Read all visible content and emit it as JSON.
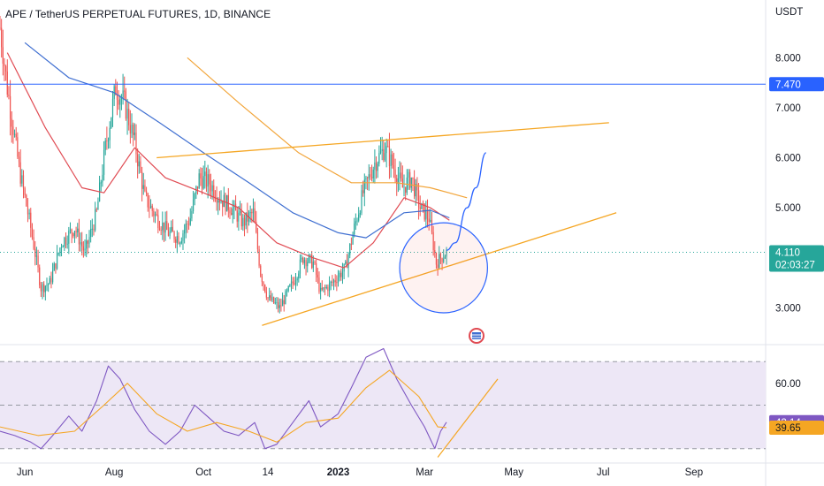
{
  "header": {
    "title": "APE / TetherUS PERPETUAL FUTURES, 1D, BINANCE",
    "currency": "USDT"
  },
  "colors": {
    "up": "#26a69a",
    "down": "#ef5350",
    "ma_red": "#e04a52",
    "ma_blue": "#3f6fd1",
    "ma_orange": "#f2a53a",
    "trend": "#f5a623",
    "hline": "#2962ff",
    "rsi": "#7e57c2",
    "rsi_ma": "#f5a623",
    "rsi_band": "#ede7f6",
    "price_badge": "#26a69a",
    "hline_badge": "#2962ff",
    "rsi_badge": "#7e57c2",
    "rsi_ma_badge": "#f5a623"
  },
  "chart_data": {
    "type": "candlestick",
    "price_axis": {
      "ticks": [
        "8.000",
        "7.000",
        "6.000",
        "5.000",
        "3.000"
      ],
      "tick_values": [
        8,
        7,
        6,
        5,
        3
      ],
      "range": [
        2.3,
        8.8
      ]
    },
    "x_axis": {
      "labels": [
        "Jun",
        "Aug",
        "Oct",
        "14",
        "2023",
        "Mar",
        "May",
        "Jul",
        "Sep"
      ],
      "bold": [
        "2023"
      ],
      "dates": [
        "2022-06-01",
        "2022-08-01",
        "2022-10-01",
        "2022-11-14",
        "2023-01-01",
        "2023-03-01",
        "2023-05-01",
        "2023-07-01",
        "2023-09-01"
      ]
    },
    "date_range": [
      "2022-05-15",
      "2023-10-20"
    ],
    "candles_range": [
      "2022-05-15",
      "2023-03-16"
    ],
    "price_path": [
      [
        "2022-05-15",
        8.6
      ],
      [
        "2022-05-20",
        7.4
      ],
      [
        "2022-05-28",
        5.8
      ],
      [
        "2022-06-05",
        4.6
      ],
      [
        "2022-06-12",
        3.4
      ],
      [
        "2022-06-18",
        3.5
      ],
      [
        "2022-06-26",
        4.3
      ],
      [
        "2022-07-05",
        4.6
      ],
      [
        "2022-07-12",
        4.1
      ],
      [
        "2022-07-20",
        4.9
      ],
      [
        "2022-07-26",
        6.2
      ],
      [
        "2022-08-02",
        7.4
      ],
      [
        "2022-08-08",
        7.1
      ],
      [
        "2022-08-15",
        6.3
      ],
      [
        "2022-08-22",
        5.2
      ],
      [
        "2022-08-30",
        4.8
      ],
      [
        "2022-09-07",
        4.5
      ],
      [
        "2022-09-15",
        4.4
      ],
      [
        "2022-09-22",
        4.8
      ],
      [
        "2022-09-28",
        5.6
      ],
      [
        "2022-10-05",
        5.5
      ],
      [
        "2022-10-12",
        5.2
      ],
      [
        "2022-10-20",
        5.0
      ],
      [
        "2022-10-28",
        4.7
      ],
      [
        "2022-11-04",
        4.9
      ],
      [
        "2022-11-09",
        3.7
      ],
      [
        "2022-11-14",
        3.2
      ],
      [
        "2022-11-22",
        3.0
      ],
      [
        "2022-12-01",
        3.5
      ],
      [
        "2022-12-08",
        4.0
      ],
      [
        "2022-12-15",
        3.9
      ],
      [
        "2022-12-20",
        3.3
      ],
      [
        "2022-12-28",
        3.5
      ],
      [
        "2023-01-06",
        3.8
      ],
      [
        "2023-01-12",
        4.6
      ],
      [
        "2023-01-18",
        5.3
      ],
      [
        "2023-01-26",
        5.9
      ],
      [
        "2023-02-02",
        6.2
      ],
      [
        "2023-02-08",
        5.8
      ],
      [
        "2023-02-14",
        5.4
      ],
      [
        "2023-02-20",
        5.6
      ],
      [
        "2023-02-26",
        5.0
      ],
      [
        "2023-03-04",
        4.8
      ],
      [
        "2023-03-09",
        3.9
      ],
      [
        "2023-03-12",
        4.0
      ],
      [
        "2023-03-16",
        4.11
      ]
    ],
    "moving_averages": [
      {
        "color": "#e04a52",
        "points": [
          [
            "2022-05-20",
            8.1
          ],
          [
            "2022-06-15",
            6.6
          ],
          [
            "2022-07-10",
            5.4
          ],
          [
            "2022-07-25",
            5.3
          ],
          [
            "2022-08-15",
            6.2
          ],
          [
            "2022-09-05",
            5.6
          ],
          [
            "2022-10-01",
            5.3
          ],
          [
            "2022-10-25",
            5.0
          ],
          [
            "2022-11-20",
            4.3
          ],
          [
            "2022-12-15",
            4.0
          ],
          [
            "2023-01-05",
            3.8
          ],
          [
            "2023-01-25",
            4.3
          ],
          [
            "2023-02-15",
            5.2
          ],
          [
            "2023-03-05",
            5.0
          ],
          [
            "2023-03-18",
            4.75
          ]
        ]
      },
      {
        "color": "#3f6fd1",
        "points": [
          [
            "2022-06-01",
            8.3
          ],
          [
            "2022-07-01",
            7.6
          ],
          [
            "2022-08-01",
            7.3
          ],
          [
            "2022-09-01",
            6.7
          ],
          [
            "2022-10-01",
            6.1
          ],
          [
            "2022-11-01",
            5.5
          ],
          [
            "2022-12-01",
            4.9
          ],
          [
            "2023-01-01",
            4.5
          ],
          [
            "2023-01-20",
            4.4
          ],
          [
            "2023-02-15",
            4.9
          ],
          [
            "2023-03-05",
            4.95
          ],
          [
            "2023-03-18",
            4.8
          ]
        ]
      },
      {
        "color": "#f2a53a",
        "points": [
          [
            "2022-09-20",
            8.0
          ],
          [
            "2022-10-25",
            7.1
          ],
          [
            "2022-12-05",
            6.1
          ],
          [
            "2023-01-10",
            5.5
          ],
          [
            "2023-02-10",
            5.5
          ],
          [
            "2023-03-05",
            5.4
          ],
          [
            "2023-03-30",
            5.2
          ]
        ]
      }
    ],
    "horizontal_line": {
      "value": 7.47,
      "label": "7.470"
    },
    "current_price": {
      "value": 4.11,
      "label": "4.110",
      "countdown": "02:03:27"
    },
    "drawings": {
      "upper_trendline": [
        [
          "2022-08-30",
          6.0
        ],
        [
          "2023-07-05",
          6.7
        ]
      ],
      "lower_trendline": [
        [
          "2022-11-10",
          2.65
        ],
        [
          "2023-07-10",
          4.9
        ]
      ],
      "projection": [
        [
          "2023-03-16",
          4.15
        ],
        [
          "2023-03-22",
          4.3
        ],
        [
          "2023-03-30",
          5.0
        ],
        [
          "2023-04-05",
          5.4
        ],
        [
          "2023-04-12",
          6.1
        ]
      ],
      "circle": {
        "center": [
          "2023-03-14",
          3.8
        ],
        "radius_days": 30,
        "radius_price": 0.9
      }
    },
    "rsi": {
      "levels": [
        70,
        50,
        30
      ],
      "tick_label": "60.00",
      "tick_value": 60,
      "range": [
        25,
        77
      ],
      "current": {
        "value": 42.14,
        "label": "42.14"
      },
      "ma_current": {
        "value": 39.65,
        "label": "39.65"
      },
      "path": [
        [
          "2022-05-15",
          38
        ],
        [
          "2022-05-25",
          36
        ],
        [
          "2022-06-05",
          33
        ],
        [
          "2022-06-12",
          30
        ],
        [
          "2022-06-20",
          36
        ],
        [
          "2022-07-01",
          45
        ],
        [
          "2022-07-10",
          38
        ],
        [
          "2022-07-20",
          52
        ],
        [
          "2022-07-28",
          68
        ],
        [
          "2022-08-05",
          62
        ],
        [
          "2022-08-15",
          48
        ],
        [
          "2022-08-25",
          38
        ],
        [
          "2022-09-05",
          32
        ],
        [
          "2022-09-15",
          38
        ],
        [
          "2022-09-25",
          50
        ],
        [
          "2022-10-05",
          44
        ],
        [
          "2022-10-15",
          38
        ],
        [
          "2022-10-25",
          36
        ],
        [
          "2022-11-05",
          42
        ],
        [
          "2022-11-12",
          30
        ],
        [
          "2022-11-20",
          32
        ],
        [
          "2022-12-01",
          42
        ],
        [
          "2022-12-12",
          52
        ],
        [
          "2022-12-20",
          40
        ],
        [
          "2023-01-01",
          46
        ],
        [
          "2023-01-10",
          58
        ],
        [
          "2023-01-20",
          72
        ],
        [
          "2023-02-01",
          76
        ],
        [
          "2023-02-10",
          62
        ],
        [
          "2023-02-20",
          50
        ],
        [
          "2023-03-01",
          40
        ],
        [
          "2023-03-08",
          30
        ],
        [
          "2023-03-12",
          38
        ],
        [
          "2023-03-16",
          42.14
        ]
      ],
      "ma_path": [
        [
          "2022-05-15",
          40
        ],
        [
          "2022-06-10",
          36
        ],
        [
          "2022-07-05",
          38
        ],
        [
          "2022-07-25",
          50
        ],
        [
          "2022-08-10",
          60
        ],
        [
          "2022-08-30",
          46
        ],
        [
          "2022-09-20",
          38
        ],
        [
          "2022-10-10",
          42
        ],
        [
          "2022-11-01",
          38
        ],
        [
          "2022-11-20",
          33
        ],
        [
          "2022-12-10",
          42
        ],
        [
          "2023-01-01",
          44
        ],
        [
          "2023-01-20",
          58
        ],
        [
          "2023-02-05",
          66
        ],
        [
          "2023-02-25",
          54
        ],
        [
          "2023-03-10",
          40
        ],
        [
          "2023-03-16",
          39.65
        ]
      ],
      "trendline": [
        [
          "2023-03-10",
          26
        ],
        [
          "2023-04-20",
          62
        ]
      ]
    }
  }
}
